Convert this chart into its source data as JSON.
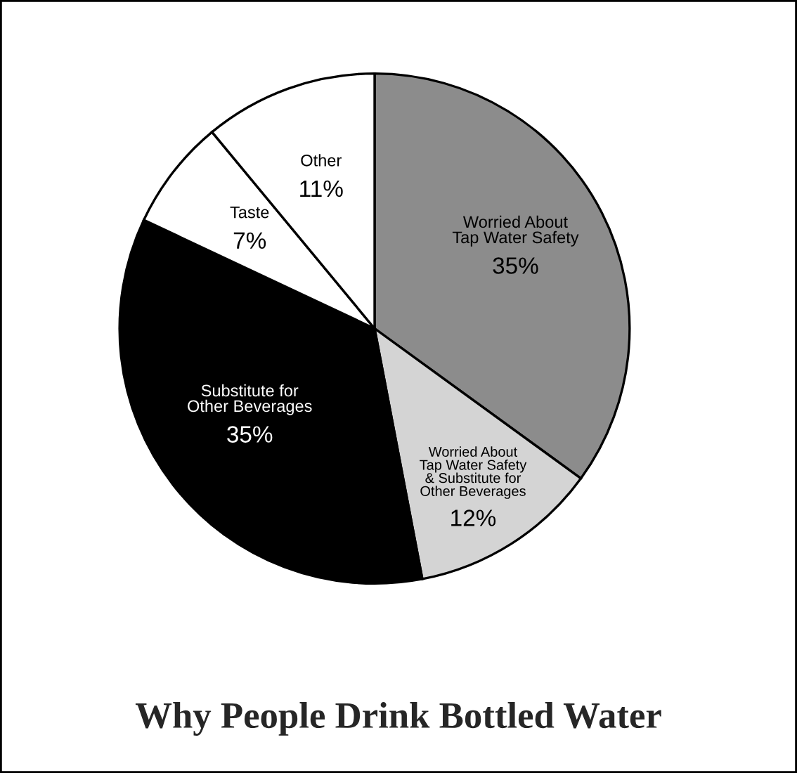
{
  "chart_data": {
    "type": "pie",
    "title": "Why People Drink Bottled Water",
    "categories": [
      "Worried About\nTap Water Safety",
      "Worried About\nTap Water Safety\n& Substitute for\nOther Beverages",
      "Substitute for\nOther Beverages",
      "Taste",
      "Other"
    ],
    "values": [
      35,
      12,
      35,
      7,
      11
    ],
    "value_labels": [
      "35%",
      "12%",
      "35%",
      "7%",
      "11%"
    ],
    "colors": [
      "#8c8c8c",
      "#d4d4d4",
      "#000000",
      "#ffffff",
      "#ffffff"
    ],
    "legend": false
  }
}
